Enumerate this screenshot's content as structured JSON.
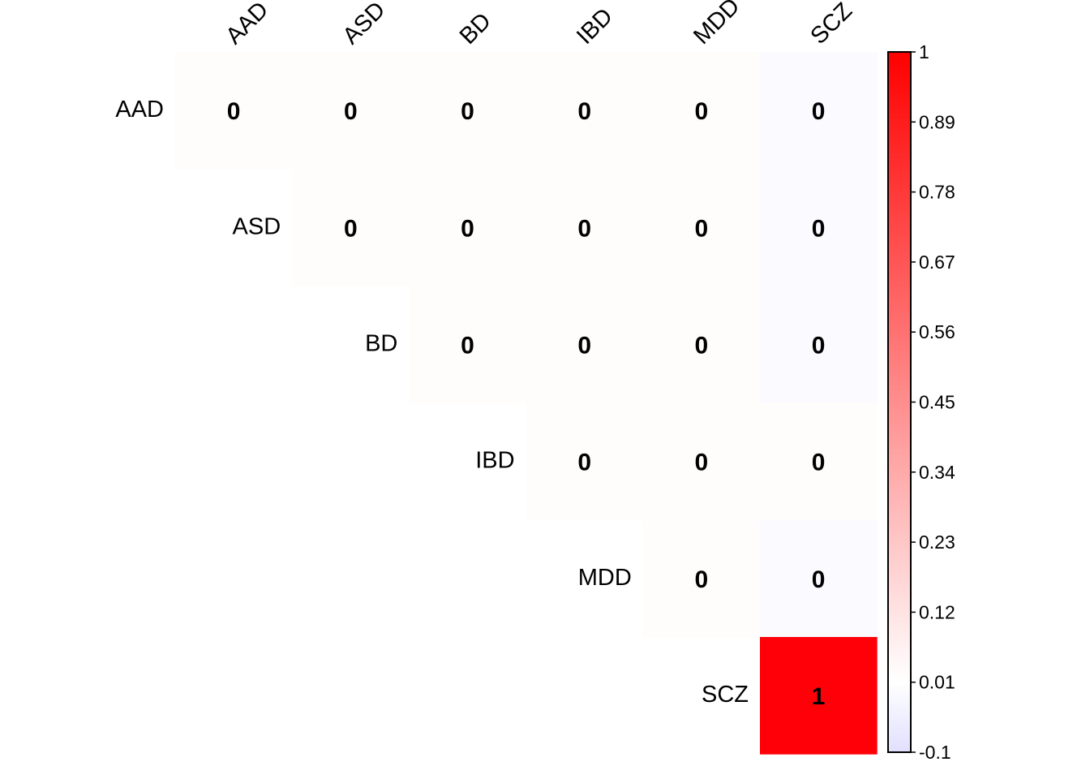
{
  "chart_data": {
    "type": "heatmap",
    "subtype": "correlation-upper-triangle",
    "labels": [
      "AAD",
      "ASD",
      "BD",
      "IBD",
      "MDD",
      "SCZ"
    ],
    "cell_labels": [
      [
        "0",
        "0",
        "0",
        "0",
        "0",
        "0"
      ],
      [
        null,
        "0",
        "0",
        "0",
        "0",
        "0"
      ],
      [
        null,
        null,
        "0",
        "0",
        "0",
        "0"
      ],
      [
        null,
        null,
        null,
        "0",
        "0",
        "0"
      ],
      [
        null,
        null,
        null,
        null,
        "0",
        "0"
      ],
      [
        null,
        null,
        null,
        null,
        null,
        "1"
      ]
    ],
    "cell_colors": [
      [
        "#fffdfb",
        "#fffdfb",
        "#fffdfb",
        "#fffdfb",
        "#fffdfb",
        "#fbfbff"
      ],
      [
        null,
        "#fffdfb",
        "#fffdfb",
        "#fffdfb",
        "#fffdfb",
        "#fbfbff"
      ],
      [
        null,
        null,
        "#fffdfb",
        "#fffdfb",
        "#fffdfb",
        "#fbfbff"
      ],
      [
        null,
        null,
        null,
        "#fffdfb",
        "#fffdfb",
        "#fffdfb"
      ],
      [
        null,
        null,
        null,
        null,
        "#fffdfb",
        "#fbfbff"
      ],
      [
        null,
        null,
        null,
        null,
        null,
        "#ff0008"
      ]
    ],
    "colorbar": {
      "range": [
        -0.1,
        1
      ],
      "ticks": [
        "1",
        "0.89",
        "0.78",
        "0.67",
        "0.56",
        "0.45",
        "0.34",
        "0.23",
        "0.12",
        "0.01",
        "-0.1"
      ],
      "colors": {
        "low": "#e0e0ff",
        "mid": "#ffffff",
        "high": "#ff0000"
      },
      "placement": "right"
    },
    "grid": false
  }
}
